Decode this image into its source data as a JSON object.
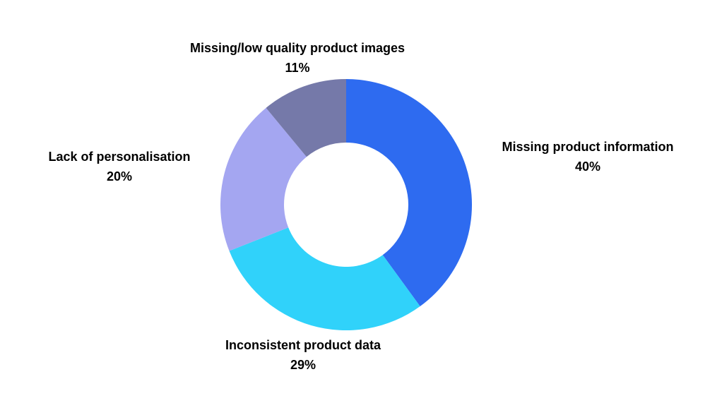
{
  "chart_data": {
    "type": "pie",
    "subtype": "donut",
    "title": "",
    "start_angle_deg": 0,
    "direction": "clockwise",
    "donut_hole_ratio": 0.494,
    "background_color": "#ffffff",
    "label_text_color": "#000000",
    "categories": [
      "Missing product information",
      "Inconsistent product data",
      "Lack of personalisation",
      "Missing/low quality product images"
    ],
    "values": [
      40,
      29,
      20,
      11
    ],
    "slices": [
      {
        "label": "Missing product information",
        "value": 40,
        "value_label": "40%",
        "color": "#2E6BF0",
        "label_position": "right"
      },
      {
        "label": "Inconsistent product data",
        "value": 29,
        "value_label": "29%",
        "color": "#30D2FA",
        "label_position": "bottom"
      },
      {
        "label": "Lack of personalisation",
        "value": 20,
        "value_label": "20%",
        "color": "#A4A6F1",
        "label_position": "left"
      },
      {
        "label": "Missing/low quality product images",
        "value": 11,
        "value_label": "11%",
        "color": "#7579A9",
        "label_position": "top"
      }
    ]
  }
}
